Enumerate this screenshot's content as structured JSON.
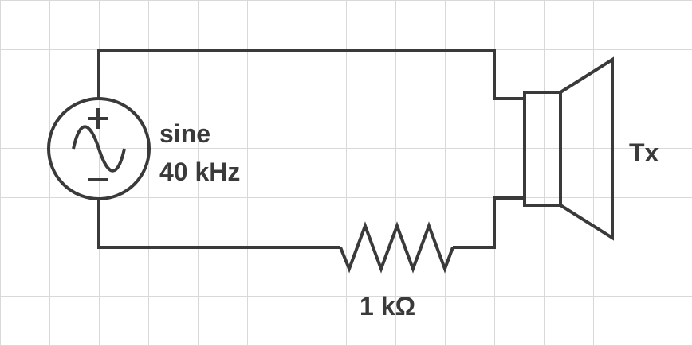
{
  "source": {
    "waveform_label": "sine",
    "frequency_label": "40 kHz",
    "plus_symbol": "+",
    "minus_symbol": "−"
  },
  "resistor": {
    "value_label": "1 kΩ"
  },
  "transducer": {
    "label": "Tx"
  },
  "colors": {
    "wire": "#3a3a3a",
    "grid": "#d9d9d9",
    "background": "#ffffff"
  }
}
